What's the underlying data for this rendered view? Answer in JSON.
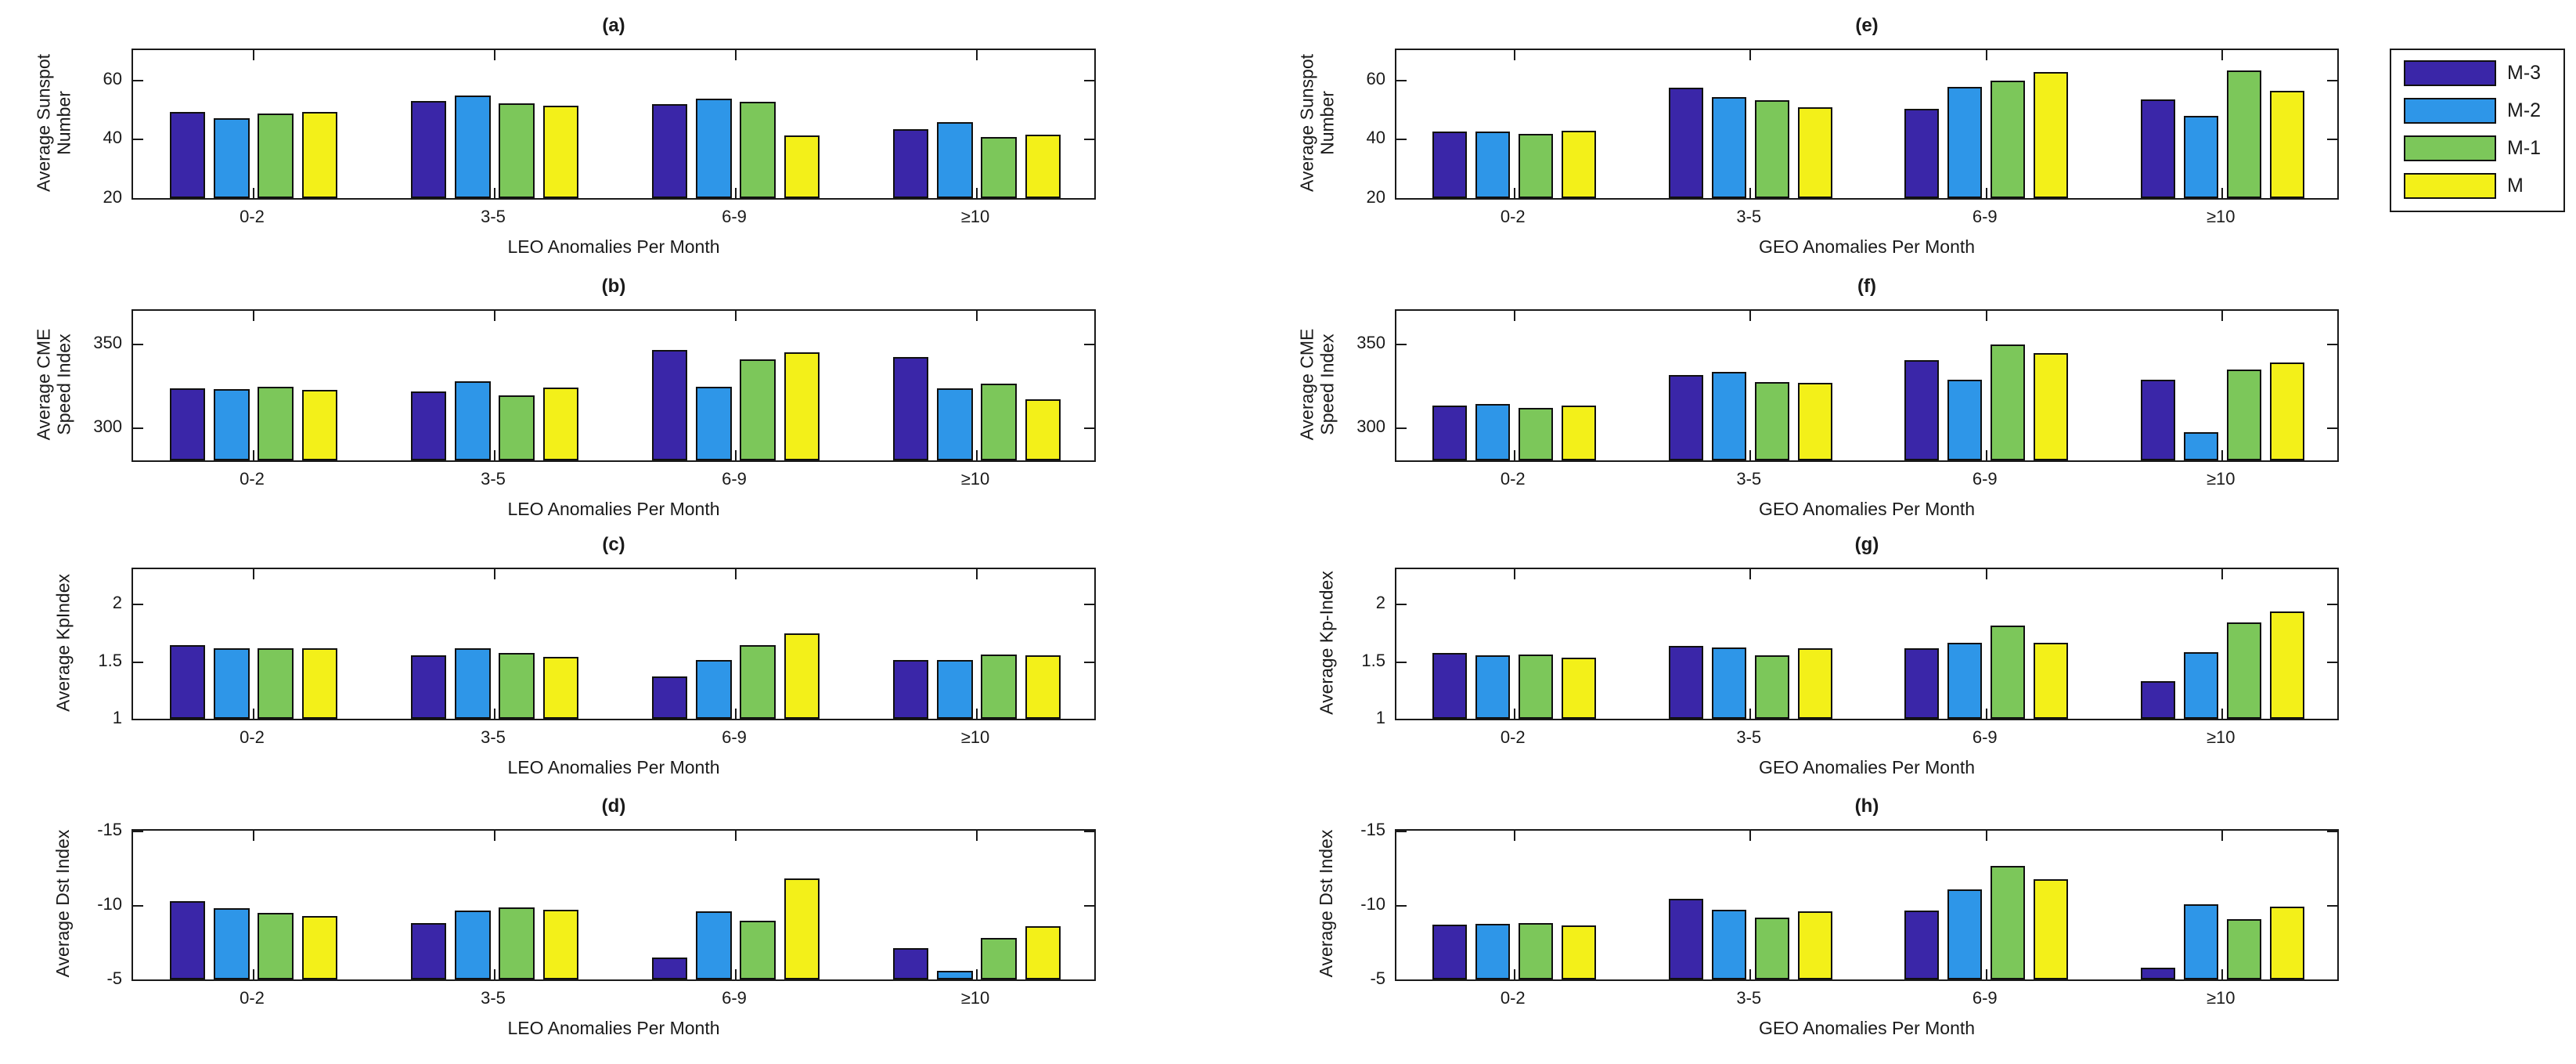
{
  "legend": {
    "entries": [
      {
        "label": "M-3",
        "color": "#3A26A8"
      },
      {
        "label": "M-2",
        "color": "#2E96E8"
      },
      {
        "label": "M-1",
        "color": "#7CC75A"
      },
      {
        "label": "M",
        "color": "#F3F019"
      }
    ]
  },
  "series_colors": [
    "#3A26A8",
    "#2E96E8",
    "#7CC75A",
    "#F3F019"
  ],
  "chart_data": [
    {
      "type": "bar",
      "panel": "a",
      "title": "(a)",
      "ylabel_lines": [
        "Average Sunspot",
        "Number"
      ],
      "xlabel": "LEO Anomalies Per Month",
      "categories": [
        "0-2",
        "3-5",
        "6-9",
        "≥10"
      ],
      "ylim": [
        20,
        70
      ],
      "y_top": 70,
      "y_bottom": 20,
      "yticks": [
        60,
        40,
        20
      ],
      "ytick_labels": [
        "60",
        "40",
        "20"
      ],
      "series": [
        {
          "name": "M-3",
          "values": [
            49.2,
            52.8,
            51.7,
            43.2
          ]
        },
        {
          "name": "M-2",
          "values": [
            47.0,
            54.7,
            53.5,
            45.7
          ]
        },
        {
          "name": "M-1",
          "values": [
            48.6,
            52.1,
            52.6,
            40.7
          ]
        },
        {
          "name": "M",
          "values": [
            49.2,
            51.2,
            41.3,
            41.4
          ]
        }
      ]
    },
    {
      "type": "bar",
      "panel": "b",
      "title": "(b)",
      "ylabel_lines": [
        "Average CME",
        "Speed Index"
      ],
      "xlabel": "LEO Anomalies Per Month",
      "categories": [
        "0-2",
        "3-5",
        "6-9",
        "≥10"
      ],
      "ylim": [
        280,
        370
      ],
      "y_top": 370,
      "y_bottom": 280,
      "yticks": [
        350,
        300
      ],
      "ytick_labels": [
        "350",
        "300"
      ],
      "series": [
        {
          "name": "M-3",
          "values": [
            323.5,
            321.6,
            346.3,
            342.2
          ]
        },
        {
          "name": "M-2",
          "values": [
            322.7,
            327.6,
            324.5,
            323.2
          ]
        },
        {
          "name": "M-1",
          "values": [
            324.5,
            319.3,
            340.8,
            326.2
          ]
        },
        {
          "name": "M",
          "values": [
            322.4,
            323.8,
            344.9,
            316.6
          ]
        }
      ]
    },
    {
      "type": "bar",
      "panel": "c",
      "title": "(c)",
      "ylabel_lines": [
        "Average KpIndex"
      ],
      "xlabel": "LEO Anomalies Per Month",
      "categories": [
        "0-2",
        "3-5",
        "6-9",
        "≥10"
      ],
      "ylim": [
        1,
        2.3
      ],
      "y_top": 2.3,
      "y_bottom": 1,
      "yticks": [
        2,
        1.5,
        1
      ],
      "ytick_labels": [
        "2",
        "1.5",
        "1"
      ],
      "series": [
        {
          "name": "M-3",
          "values": [
            1.64,
            1.55,
            1.37,
            1.51
          ]
        },
        {
          "name": "M-2",
          "values": [
            1.61,
            1.61,
            1.51,
            1.51
          ]
        },
        {
          "name": "M-1",
          "values": [
            1.61,
            1.57,
            1.64,
            1.56
          ]
        },
        {
          "name": "M",
          "values": [
            1.61,
            1.54,
            1.74,
            1.55
          ]
        }
      ]
    },
    {
      "type": "bar",
      "panel": "d",
      "title": "(d)",
      "ylabel_lines": [
        "Average Dst Index"
      ],
      "xlabel": "LEO Anomalies Per Month",
      "categories": [
        "0-2",
        "3-5",
        "6-9",
        "≥10"
      ],
      "ylim": [
        -15,
        -5
      ],
      "y_top": -15,
      "y_bottom": -5,
      "y_reversed": true,
      "yticks": [
        -15,
        -10,
        -5
      ],
      "ytick_labels": [
        "-15",
        "-10",
        "-5"
      ],
      "series": [
        {
          "name": "M-3",
          "values": [
            -10.25,
            -8.8,
            -6.5,
            -7.1
          ]
        },
        {
          "name": "M-2",
          "values": [
            -9.8,
            -9.65,
            -9.6,
            -5.6
          ]
        },
        {
          "name": "M-1",
          "values": [
            -9.5,
            -9.85,
            -8.95,
            -7.8
          ]
        },
        {
          "name": "M",
          "values": [
            -9.25,
            -9.7,
            -11.8,
            -8.6
          ]
        }
      ]
    },
    {
      "type": "bar",
      "panel": "e",
      "title": "(e)",
      "ylabel_lines": [
        "Average Sunspot",
        "Number"
      ],
      "xlabel": "GEO Anomalies Per Month",
      "categories": [
        "0-2",
        "3-5",
        "6-9",
        "≥10"
      ],
      "ylim": [
        20,
        70
      ],
      "y_top": 70,
      "y_bottom": 20,
      "yticks": [
        60,
        40,
        20
      ],
      "ytick_labels": [
        "60",
        "40",
        "20"
      ],
      "series": [
        {
          "name": "M-3",
          "values": [
            42.4,
            57.4,
            50.2,
            53.4
          ]
        },
        {
          "name": "M-2",
          "values": [
            42.4,
            54.1,
            57.7,
            47.7
          ]
        },
        {
          "name": "M-1",
          "values": [
            41.7,
            53.2,
            59.8,
            63.0
          ]
        },
        {
          "name": "M",
          "values": [
            42.8,
            50.6,
            62.5,
            56.2
          ]
        }
      ]
    },
    {
      "type": "bar",
      "panel": "f",
      "title": "(f)",
      "ylabel_lines": [
        "Average CME",
        "Speed Index"
      ],
      "xlabel": "GEO Anomalies Per Month",
      "categories": [
        "0-2",
        "3-5",
        "6-9",
        "≥10"
      ],
      "ylim": [
        280,
        370
      ],
      "y_top": 370,
      "y_bottom": 280,
      "yticks": [
        350,
        300
      ],
      "ytick_labels": [
        "350",
        "300"
      ],
      "series": [
        {
          "name": "M-3",
          "values": [
            313.2,
            331.6,
            340.3,
            328.5
          ]
        },
        {
          "name": "M-2",
          "values": [
            314.1,
            333.4,
            328.5,
            297.0
          ]
        },
        {
          "name": "M-1",
          "values": [
            311.7,
            327.3,
            349.8,
            334.5
          ]
        },
        {
          "name": "M",
          "values": [
            313.0,
            326.5,
            344.5,
            339.0
          ]
        }
      ]
    },
    {
      "type": "bar",
      "panel": "g",
      "title": "(g)",
      "ylabel_lines": [
        "Average Kp-Index"
      ],
      "xlabel": "GEO Anomalies Per Month",
      "categories": [
        "0-2",
        "3-5",
        "6-9",
        "≥10"
      ],
      "ylim": [
        1,
        2.3
      ],
      "y_top": 2.3,
      "y_bottom": 1,
      "yticks": [
        2,
        1.5,
        1
      ],
      "ytick_labels": [
        "2",
        "1.5",
        "1"
      ],
      "series": [
        {
          "name": "M-3",
          "values": [
            1.57,
            1.63,
            1.61,
            1.33
          ]
        },
        {
          "name": "M-2",
          "values": [
            1.55,
            1.62,
            1.66,
            1.58
          ]
        },
        {
          "name": "M-1",
          "values": [
            1.56,
            1.55,
            1.81,
            1.84
          ]
        },
        {
          "name": "M",
          "values": [
            1.53,
            1.61,
            1.66,
            1.93
          ]
        }
      ]
    },
    {
      "type": "bar",
      "panel": "h",
      "title": "(h)",
      "ylabel_lines": [
        "Average Dst Index"
      ],
      "xlabel": "GEO Anomalies Per Month",
      "categories": [
        "0-2",
        "3-5",
        "6-9",
        "≥10"
      ],
      "ylim": [
        -15,
        -5
      ],
      "y_top": -15,
      "y_bottom": -5,
      "y_reversed": true,
      "yticks": [
        -15,
        -10,
        -5
      ],
      "ytick_labels": [
        "-15",
        "-10",
        "-5"
      ],
      "series": [
        {
          "name": "M-3",
          "values": [
            -8.7,
            -10.4,
            -9.65,
            -5.8
          ]
        },
        {
          "name": "M-2",
          "values": [
            -8.75,
            -9.7,
            -11.05,
            -10.05
          ]
        },
        {
          "name": "M-1",
          "values": [
            -8.8,
            -9.15,
            -12.65,
            -9.05
          ]
        },
        {
          "name": "M",
          "values": [
            -8.65,
            -9.6,
            -11.75,
            -9.9
          ]
        }
      ]
    }
  ]
}
